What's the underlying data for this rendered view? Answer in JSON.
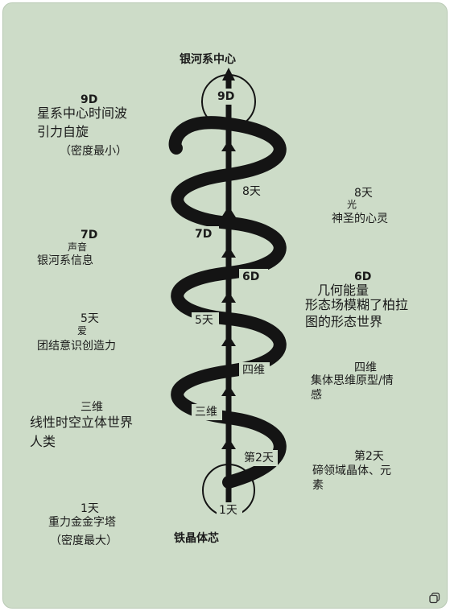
{
  "top_label": "银河系中心",
  "bottom_label": "铁晶体芯",
  "axis_labels": [
    "9D",
    "8天",
    "7D",
    "6D",
    "5天",
    "四维",
    "三维",
    "第2天",
    "1天"
  ],
  "left": {
    "d9": {
      "head": "9D",
      "l1": "星系中心时间波",
      "l2": "引力自旋",
      "l3": "（密度最小）"
    },
    "d7": {
      "head": "7D",
      "sub": "声音",
      "l1": "银河系信息"
    },
    "d5": {
      "head": "5天",
      "sub": "爱",
      "l1": "团结意识创造力"
    },
    "d3": {
      "head": "三维",
      "l1": "线性时空立体世界",
      "l2": "人类"
    },
    "d1": {
      "head": "1天",
      "l1": "重力金金字塔",
      "l2": "（密度最大）"
    }
  },
  "right": {
    "d8": {
      "head": "8天",
      "sub": "光",
      "l1": "神圣的心灵"
    },
    "d6": {
      "head": "6D",
      "l1": "几何能量",
      "l2": "形态场模糊了柏拉",
      "l3": "图的形态世界"
    },
    "d4": {
      "head": "四维",
      "l1": "集体思维原型/情",
      "l2": "感"
    },
    "d2": {
      "head": "第2天",
      "l1": "碲领域晶体、元",
      "l2": "素"
    }
  },
  "colors": {
    "background": "#cddcc8",
    "ink": "#141414"
  },
  "icons": [
    "copy-icon"
  ]
}
